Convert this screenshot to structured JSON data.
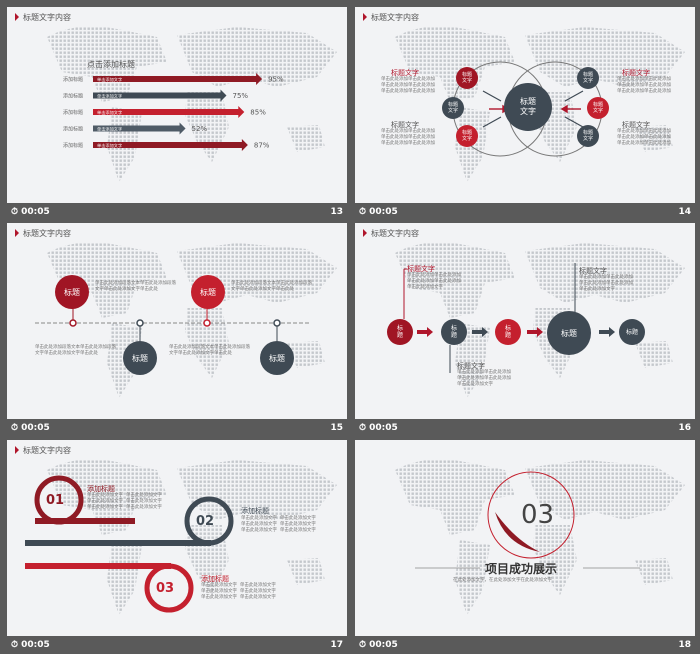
{
  "colors": {
    "accent_red": "#c4202e",
    "dark_red": "#8f1a24",
    "slate": "#3f4a54",
    "slide_bg": "#f2f3f5"
  },
  "slides": [
    {
      "number": "13",
      "time": "00:05",
      "header": "标题文字内容",
      "subtitle": "点击添加标题",
      "chart_data": {
        "type": "bar",
        "categories": [
          "添加标题",
          "添加标题",
          "添加标题",
          "添加标题",
          "添加标题"
        ],
        "bar_labels": [
          "单击添加文字",
          "单击添加文字",
          "单击添加文字",
          "单击添加文字",
          "单击添加文字"
        ],
        "values": [
          95,
          75,
          85,
          52,
          87
        ],
        "value_labels": [
          "95%",
          "75%",
          "85%",
          "52%",
          "87%"
        ]
      }
    },
    {
      "number": "14",
      "time": "00:05",
      "header": "标题文字内容",
      "center": "标题\n文字",
      "nodes": [
        "标题\n文字",
        "标题\n文字",
        "标题\n文字",
        "标题\n文字",
        "标题\n文字",
        "标题\n文字"
      ],
      "labels": [
        "标题文字",
        "标题文字",
        "标题文字",
        "标题文字"
      ],
      "body": "单击此处添加单击此处添加\n单击此处添加单击此处添加\n单击此处添加单击此处添加"
    },
    {
      "number": "15",
      "time": "00:05",
      "header": "标题文字内容",
      "nodes": [
        "标题",
        "标题",
        "标题",
        "标题"
      ],
      "body": "单击此处添加段落文本单击此处添加段落\n文字单击此处添加文字单击此处"
    },
    {
      "number": "16",
      "time": "00:05",
      "header": "标题文字内容",
      "nodes": [
        "标\n题",
        "标\n题",
        "标\n题",
        "标题",
        "标题"
      ],
      "labels": [
        "标题文字",
        "标题文字",
        "标题文字"
      ],
      "body": "单击此处添加单击此处添加\n单击此处添加单击此处添加\n单击此处添加文字"
    },
    {
      "number": "17",
      "time": "00:05",
      "header": "标题文字内容",
      "items": [
        {
          "num": "01",
          "title": "添加标题"
        },
        {
          "num": "02",
          "title": "添加标题"
        },
        {
          "num": "03",
          "title": "添加标题"
        }
      ],
      "body": "单击此处添加文字  单击此处添加文字\n单击此处添加文字  单击此处添加文字\n单击此处添加文字  单击此处添加文字"
    },
    {
      "number": "18",
      "time": "00:05",
      "section_num": "03",
      "title": "项目成功展示",
      "caption": "在此处添加文字，在此处添加文字在此处添加文字"
    }
  ]
}
